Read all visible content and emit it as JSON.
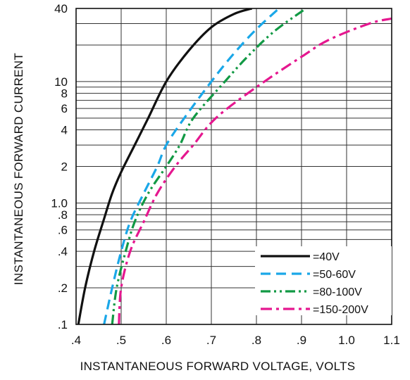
{
  "chart_data": {
    "type": "line",
    "title": "",
    "xlabel": "INSTANTANEOUS FORWARD VOLTAGE, VOLTS",
    "ylabel": "INSTANTANEOUS FORWARD CURRENT",
    "xlim": [
      0.4,
      1.1
    ],
    "ylim": [
      0.1,
      40
    ],
    "y_scale": "log",
    "grid": true,
    "legend_position": "bottom-right",
    "x_ticks": [
      {
        "value": 0.4,
        "label": ".4"
      },
      {
        "value": 0.5,
        "label": ".5"
      },
      {
        "value": 0.6,
        "label": ".6"
      },
      {
        "value": 0.7,
        "label": ".7"
      },
      {
        "value": 0.8,
        "label": ".8"
      },
      {
        "value": 0.9,
        "label": ".9"
      },
      {
        "value": 1.0,
        "label": "1.0"
      },
      {
        "value": 1.1,
        "label": "1.1"
      }
    ],
    "y_ticks": [
      {
        "value": 0.1,
        "label": ".1"
      },
      {
        "value": 0.2,
        "label": ".2"
      },
      {
        "value": 0.4,
        "label": ".4"
      },
      {
        "value": 0.6,
        "label": ".6"
      },
      {
        "value": 0.8,
        "label": ".8"
      },
      {
        "value": 1.0,
        "label": "1.0"
      },
      {
        "value": 2,
        "label": "2"
      },
      {
        "value": 4,
        "label": "4"
      },
      {
        "value": 6,
        "label": "6"
      },
      {
        "value": 8,
        "label": "8"
      },
      {
        "value": 10,
        "label": "10"
      },
      {
        "value": 40,
        "label": "40"
      }
    ],
    "y_minor_gridlines": [
      0.3,
      0.5,
      0.7,
      0.9,
      3,
      5,
      7,
      9,
      20,
      30
    ],
    "series": [
      {
        "name": "=40V",
        "color": "#111111",
        "dash": "solid",
        "points": [
          [
            0.405,
            0.1
          ],
          [
            0.42,
            0.2
          ],
          [
            0.44,
            0.4
          ],
          [
            0.46,
            0.7
          ],
          [
            0.48,
            1.2
          ],
          [
            0.5,
            1.8
          ],
          [
            0.53,
            3
          ],
          [
            0.56,
            5
          ],
          [
            0.6,
            10
          ],
          [
            0.65,
            18
          ],
          [
            0.7,
            28
          ],
          [
            0.75,
            36
          ],
          [
            0.79,
            40
          ]
        ]
      },
      {
        "name": "=50-60V",
        "color": "#1aa7e8",
        "dash": "dash",
        "points": [
          [
            0.462,
            0.1
          ],
          [
            0.48,
            0.2
          ],
          [
            0.5,
            0.4
          ],
          [
            0.52,
            0.7
          ],
          [
            0.55,
            1.2
          ],
          [
            0.58,
            2
          ],
          [
            0.6,
            3
          ],
          [
            0.64,
            5
          ],
          [
            0.7,
            10
          ],
          [
            0.75,
            17
          ],
          [
            0.8,
            27
          ],
          [
            0.85,
            40
          ]
        ]
      },
      {
        "name": "=80-100V",
        "color": "#119944",
        "dash": "dashdotdot",
        "points": [
          [
            0.48,
            0.1
          ],
          [
            0.49,
            0.2
          ],
          [
            0.51,
            0.4
          ],
          [
            0.53,
            0.7
          ],
          [
            0.56,
            1.2
          ],
          [
            0.6,
            2
          ],
          [
            0.63,
            3
          ],
          [
            0.66,
            5
          ],
          [
            0.73,
            10
          ],
          [
            0.78,
            16
          ],
          [
            0.84,
            26
          ],
          [
            0.91,
            40
          ]
        ]
      },
      {
        "name": "=150-200V",
        "color": "#e5178f",
        "dash": "dashdot",
        "points": [
          [
            0.495,
            0.1
          ],
          [
            0.5,
            0.2
          ],
          [
            0.52,
            0.4
          ],
          [
            0.55,
            0.7
          ],
          [
            0.58,
            1.2
          ],
          [
            0.62,
            2
          ],
          [
            0.66,
            3
          ],
          [
            0.71,
            5
          ],
          [
            0.8,
            9
          ],
          [
            0.9,
            16
          ],
          [
            0.96,
            22
          ],
          [
            1.05,
            30
          ],
          [
            1.1,
            33
          ]
        ]
      }
    ]
  }
}
